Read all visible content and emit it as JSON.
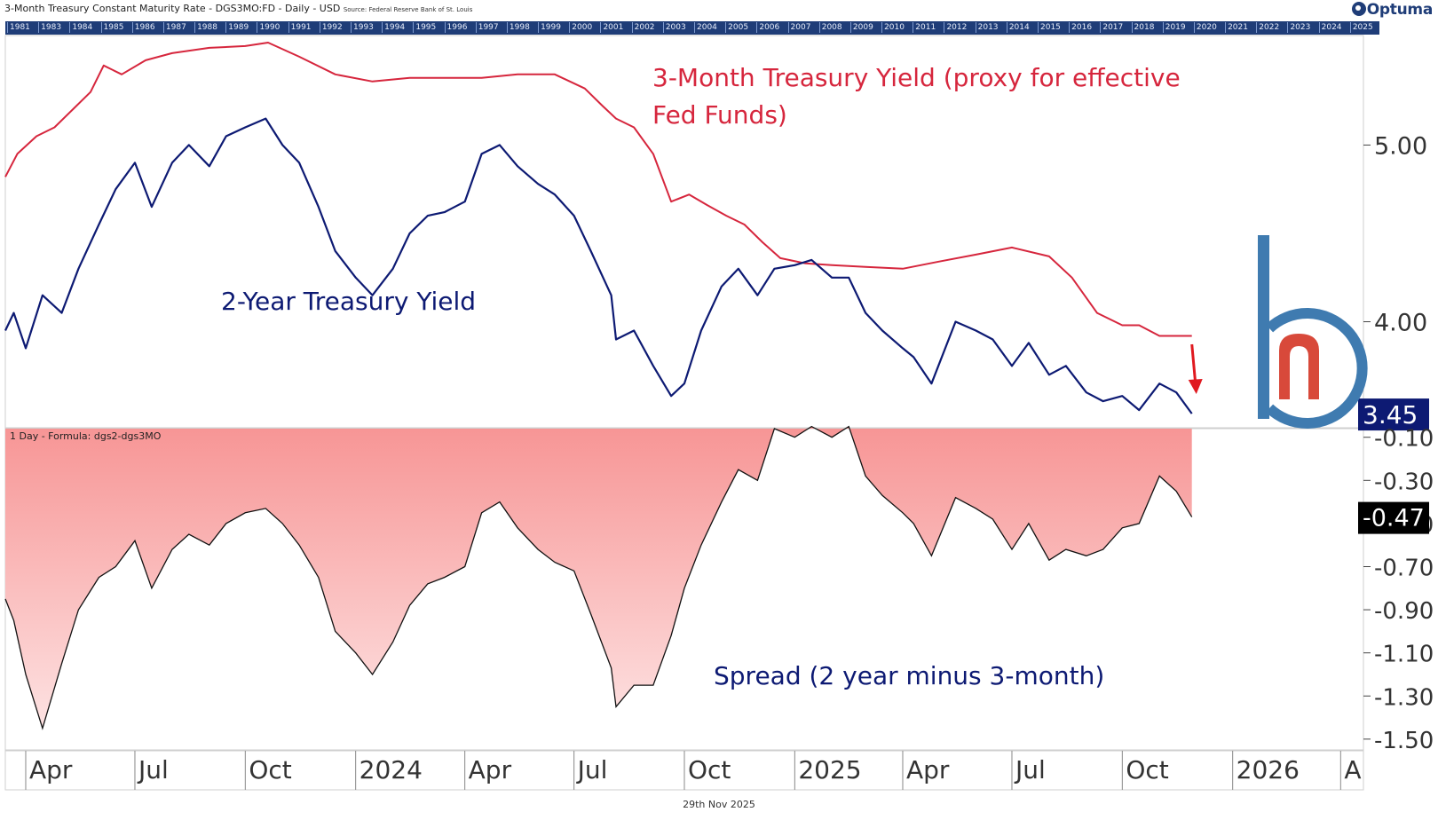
{
  "header": {
    "title": "3-Month Treasury Constant Maturity Rate - DGS3MO:FD - Daily - USD",
    "source": "Source: Federal Reserve Bank of St. Louis",
    "brand": "Optuma"
  },
  "year_strip": [
    "1981",
    "1983",
    "1984",
    "1985",
    "1986",
    "1987",
    "1988",
    "1989",
    "1990",
    "1991",
    "1992",
    "1993",
    "1994",
    "1995",
    "1996",
    "1997",
    "1998",
    "1999",
    "2000",
    "2001",
    "2002",
    "2003",
    "2004",
    "2005",
    "2006",
    "2007",
    "2008",
    "2009",
    "2010",
    "2011",
    "2012",
    "2013",
    "2014",
    "2015",
    "2016",
    "2017",
    "2018",
    "2019",
    "2020",
    "2021",
    "2022",
    "2023",
    "2024",
    "2025"
  ],
  "footer_date": "29th Nov 2025",
  "colors": {
    "yield_3m": "#d6263d",
    "yield_2y": "#0d1a73",
    "spread_fill_top": "#f79595",
    "spread_fill_bottom": "#fde2e2",
    "logo": "#3f7bb0",
    "logo_accent": "#d8493a",
    "arrow": "#e0191f",
    "strip": "#1f3d78"
  },
  "chart_data": [
    {
      "type": "line",
      "panel": "upper",
      "ylim": [
        3.4,
        5.62
      ],
      "yticks": [
        5.0,
        4.0
      ],
      "ytick_labels": [
        "5.00",
        "4.00"
      ],
      "last_value_label": "3.45",
      "x_range": [
        "2023-03-15",
        "2026-04-20"
      ],
      "series": [
        {
          "name": "3-Month Treasury Yield (proxy for effective Fed Funds)",
          "x": [
            "2023-03-15",
            "2023-03-25",
            "2023-04-10",
            "2023-04-25",
            "2023-05-10",
            "2023-05-25",
            "2023-06-05",
            "2023-06-20",
            "2023-07-10",
            "2023-08-01",
            "2023-09-01",
            "2023-10-01",
            "2023-10-20",
            "2023-11-15",
            "2023-12-15",
            "2024-01-15",
            "2024-02-15",
            "2024-03-15",
            "2024-04-15",
            "2024-05-15",
            "2024-06-15",
            "2024-07-10",
            "2024-07-25",
            "2024-08-05",
            "2024-08-20",
            "2024-09-05",
            "2024-09-20",
            "2024-10-05",
            "2024-10-20",
            "2024-11-05",
            "2024-11-20",
            "2024-12-05",
            "2024-12-20",
            "2025-01-10",
            "2025-02-01",
            "2025-03-01",
            "2025-04-01",
            "2025-05-01",
            "2025-06-01",
            "2025-07-01",
            "2025-08-01",
            "2025-08-20",
            "2025-09-10",
            "2025-10-01",
            "2025-10-15",
            "2025-11-01",
            "2025-11-15",
            "2025-11-28"
          ],
          "y": [
            4.82,
            4.95,
            5.05,
            5.1,
            5.2,
            5.3,
            5.45,
            5.4,
            5.48,
            5.52,
            5.55,
            5.56,
            5.58,
            5.5,
            5.4,
            5.36,
            5.38,
            5.38,
            5.38,
            5.4,
            5.4,
            5.32,
            5.22,
            5.15,
            5.1,
            4.95,
            4.68,
            4.72,
            4.66,
            4.6,
            4.55,
            4.45,
            4.36,
            4.33,
            4.32,
            4.31,
            4.3,
            4.34,
            4.38,
            4.42,
            4.37,
            4.25,
            4.05,
            3.98,
            3.98,
            3.92,
            3.92,
            3.92
          ]
        },
        {
          "name": "2-Year Treasury Yield",
          "x": [
            "2023-03-15",
            "2023-03-22",
            "2023-04-01",
            "2023-04-15",
            "2023-05-01",
            "2023-05-15",
            "2023-06-01",
            "2023-06-15",
            "2023-07-01",
            "2023-07-15",
            "2023-08-01",
            "2023-08-15",
            "2023-09-01",
            "2023-09-15",
            "2023-10-01",
            "2023-10-18",
            "2023-11-01",
            "2023-11-15",
            "2023-12-01",
            "2023-12-15",
            "2024-01-01",
            "2024-01-15",
            "2024-02-01",
            "2024-02-15",
            "2024-03-01",
            "2024-03-15",
            "2024-04-01",
            "2024-04-15",
            "2024-04-30",
            "2024-05-15",
            "2024-06-01",
            "2024-06-15",
            "2024-07-01",
            "2024-07-15",
            "2024-08-01",
            "2024-08-05",
            "2024-08-20",
            "2024-09-05",
            "2024-09-20",
            "2024-10-01",
            "2024-10-15",
            "2024-11-01",
            "2024-11-15",
            "2024-12-01",
            "2024-12-15",
            "2025-01-01",
            "2025-01-15",
            "2025-02-01",
            "2025-02-15",
            "2025-03-01",
            "2025-03-15",
            "2025-04-01",
            "2025-04-10",
            "2025-04-25",
            "2025-05-15",
            "2025-06-01",
            "2025-06-15",
            "2025-07-01",
            "2025-07-15",
            "2025-08-01",
            "2025-08-15",
            "2025-09-01",
            "2025-09-15",
            "2025-10-01",
            "2025-10-15",
            "2025-11-01",
            "2025-11-15",
            "2025-11-28"
          ],
          "y": [
            3.95,
            4.05,
            3.85,
            4.15,
            4.05,
            4.3,
            4.55,
            4.75,
            4.9,
            4.65,
            4.9,
            5.0,
            4.88,
            5.05,
            5.1,
            5.15,
            5.0,
            4.9,
            4.65,
            4.4,
            4.25,
            4.15,
            4.3,
            4.5,
            4.6,
            4.62,
            4.68,
            4.95,
            5.0,
            4.88,
            4.78,
            4.72,
            4.6,
            4.4,
            4.15,
            3.9,
            3.95,
            3.75,
            3.58,
            3.65,
            3.95,
            4.2,
            4.3,
            4.15,
            4.3,
            4.32,
            4.35,
            4.25,
            4.25,
            4.05,
            3.95,
            3.85,
            3.8,
            3.65,
            4.0,
            3.95,
            3.9,
            3.75,
            3.88,
            3.7,
            3.75,
            3.6,
            3.55,
            3.58,
            3.5,
            3.65,
            3.6,
            3.48
          ]
        }
      ]
    },
    {
      "type": "area",
      "panel": "lower",
      "label": "1 Day - Formula:  dgs2-dgs3MO",
      "ylim": [
        -1.55,
        -0.06
      ],
      "yticks": [
        -0.1,
        -0.3,
        -0.5,
        -0.7,
        -0.9,
        -1.1,
        -1.3,
        -1.5
      ],
      "ytick_labels": [
        "-0.10",
        "-0.30",
        "-0.50",
        "-0.70",
        "-0.90",
        "-1.10",
        "-1.30",
        "-1.50"
      ],
      "last_value_label": "-0.47",
      "series": [
        {
          "name": "Spread (2 year minus 3-month)",
          "x": [
            "2023-03-15",
            "2023-03-22",
            "2023-04-01",
            "2023-04-15",
            "2023-05-01",
            "2023-05-15",
            "2023-06-01",
            "2023-06-15",
            "2023-07-01",
            "2023-07-15",
            "2023-08-01",
            "2023-08-15",
            "2023-09-01",
            "2023-09-15",
            "2023-10-01",
            "2023-10-18",
            "2023-11-01",
            "2023-11-15",
            "2023-12-01",
            "2023-12-15",
            "2024-01-01",
            "2024-01-15",
            "2024-02-01",
            "2024-02-15",
            "2024-03-01",
            "2024-03-15",
            "2024-04-01",
            "2024-04-15",
            "2024-04-30",
            "2024-05-15",
            "2024-06-01",
            "2024-06-15",
            "2024-07-01",
            "2024-07-15",
            "2024-08-01",
            "2024-08-05",
            "2024-08-20",
            "2024-09-05",
            "2024-09-20",
            "2024-10-01",
            "2024-10-15",
            "2024-11-01",
            "2024-11-15",
            "2024-12-01",
            "2024-12-15",
            "2025-01-01",
            "2025-01-15",
            "2025-02-01",
            "2025-02-15",
            "2025-03-01",
            "2025-03-15",
            "2025-04-01",
            "2025-04-10",
            "2025-04-25",
            "2025-05-15",
            "2025-06-01",
            "2025-06-15",
            "2025-07-01",
            "2025-07-15",
            "2025-08-01",
            "2025-08-15",
            "2025-09-01",
            "2025-09-15",
            "2025-10-01",
            "2025-10-15",
            "2025-11-01",
            "2025-11-15",
            "2025-11-28"
          ],
          "y": [
            -0.85,
            -0.95,
            -1.2,
            -1.45,
            -1.15,
            -0.9,
            -0.75,
            -0.7,
            -0.58,
            -0.8,
            -0.62,
            -0.55,
            -0.6,
            -0.5,
            -0.45,
            -0.43,
            -0.5,
            -0.6,
            -0.75,
            -1.0,
            -1.1,
            -1.2,
            -1.05,
            -0.88,
            -0.78,
            -0.75,
            -0.7,
            -0.45,
            -0.4,
            -0.52,
            -0.62,
            -0.68,
            -0.72,
            -0.92,
            -1.17,
            -1.35,
            -1.25,
            -1.25,
            -1.02,
            -0.8,
            -0.6,
            -0.4,
            -0.25,
            -0.3,
            -0.06,
            -0.1,
            -0.05,
            -0.1,
            -0.05,
            -0.28,
            -0.37,
            -0.45,
            -0.5,
            -0.65,
            -0.38,
            -0.43,
            -0.48,
            -0.62,
            -0.5,
            -0.67,
            -0.62,
            -0.65,
            -0.62,
            -0.52,
            -0.5,
            -0.28,
            -0.35,
            -0.47
          ]
        }
      ]
    }
  ],
  "x_axis": {
    "labels": [
      {
        "text": "Apr",
        "date": "2023-04-01"
      },
      {
        "text": "Jul",
        "date": "2023-07-01"
      },
      {
        "text": "Oct",
        "date": "2023-10-01"
      },
      {
        "text": "2024",
        "date": "2024-01-01"
      },
      {
        "text": "Apr",
        "date": "2024-04-01"
      },
      {
        "text": "Jul",
        "date": "2024-07-01"
      },
      {
        "text": "Oct",
        "date": "2024-10-01"
      },
      {
        "text": "2025",
        "date": "2025-01-01"
      },
      {
        "text": "Apr",
        "date": "2025-04-01"
      },
      {
        "text": "Jul",
        "date": "2025-07-01"
      },
      {
        "text": "Oct",
        "date": "2025-10-01"
      },
      {
        "text": "2026",
        "date": "2026-01-01"
      },
      {
        "text": "A",
        "date": "2026-04-01"
      }
    ]
  },
  "annotations": {
    "red_label_line1": "3-Month Treasury Yield (proxy for effective",
    "red_label_line2": "Fed Funds)",
    "blue_label": "2-Year Treasury Yield",
    "spread_label": "Spread (2 year minus 3-month)"
  }
}
